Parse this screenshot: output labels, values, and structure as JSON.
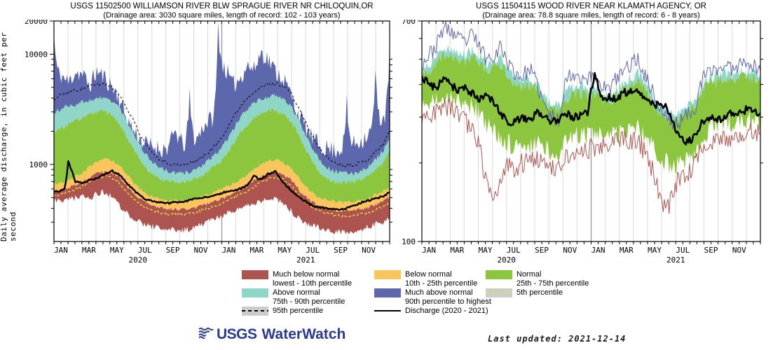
{
  "footer": {
    "logo_usgs": "USGS",
    "logo_waterwatch": "WaterWatch",
    "logo_color": "#2b3990",
    "last_updated": "Last updated: 2021-12-14"
  },
  "colors": {
    "much_below": "#ad5450",
    "below": "#fbc55d",
    "normal": "#8cc63f",
    "above": "#8fd6c8",
    "much_above": "#5d67ab",
    "percentile_gray": "#cccccc",
    "dash_yellow": "#e8e337",
    "grid": "#d9d9d9",
    "year_divider": "#909090"
  },
  "legend": {
    "columns": [
      [
        {
          "swatch": "fill",
          "color": "#ad5450",
          "label": "Much below normal",
          "sublabel": "lowest - 10th percentile"
        },
        {
          "swatch": "fill",
          "color": "#8fd6c8",
          "label": "Above normal",
          "sublabel": "75th - 90th percentile"
        },
        {
          "swatch": "gray-dash-black",
          "color": "#cccccc",
          "label": "95th percentile"
        }
      ],
      [
        {
          "swatch": "fill",
          "color": "#fbc55d",
          "label": "Below normal",
          "sublabel": "10th - 25th percentile"
        },
        {
          "swatch": "fill",
          "color": "#5d67ab",
          "label": "Much above normal",
          "sublabel": "90th percentile to highest"
        },
        {
          "swatch": "line-black",
          "label": "Discharge (2020 - 2021)"
        }
      ],
      [
        {
          "swatch": "fill",
          "color": "#8cc63f",
          "label": "Normal",
          "sublabel": "25th - 75th percentile"
        },
        {
          "swatch": "gray-dash-yellow",
          "color": "#cccccc",
          "label": "5th percentile"
        }
      ]
    ]
  },
  "chart_data": [
    {
      "id": "williamson",
      "type": "area",
      "title": "USGS 11502500 WILLIAMSON RIVER BLW SPRAGUE RIVER NR CHILOQUIN,OR",
      "subtitle": "(Drainage area: 3030 square miles, length of record: 102 - 103 years)",
      "ylabel": "Daily average discharge, in cubic feet per second",
      "yscale": "log",
      "ylim": [
        200,
        20000
      ],
      "yticks_labeled": [
        [
          20000,
          "20000"
        ],
        [
          10000,
          "10000"
        ],
        [
          1000,
          "1000"
        ]
      ],
      "yticks_minor": [
        300,
        400,
        500,
        600,
        700,
        800,
        900,
        2000,
        3000,
        4000,
        5000,
        6000,
        7000,
        8000,
        9000
      ],
      "month_labels": [
        "JAN",
        "MAR",
        "MAY",
        "JUL",
        "SEP",
        "NOV"
      ],
      "years": [
        "2020",
        "2021"
      ],
      "noise_seed": 11,
      "series": {
        "pmax": [
          15000,
          6500,
          5500,
          7000,
          6500,
          5200,
          7000,
          6200,
          5200,
          4200,
          2800,
          2100,
          1700,
          1500,
          1450,
          1380,
          1420,
          2000,
          1500,
          4200,
          1700,
          2300,
          2600,
          19000,
          7500,
          5200,
          6000,
          8000,
          7200,
          10500,
          9000,
          7000,
          6200,
          4600,
          3100,
          2300,
          1800,
          1500,
          1420,
          1350,
          1380,
          3600,
          1550,
          1650,
          1900,
          6500,
          2600,
          13000
        ],
        "p95": [
          3800,
          4300,
          4500,
          4700,
          4900,
          5100,
          5300,
          5400,
          5100,
          4500,
          3400,
          2600,
          1900,
          1500,
          1250,
          1100,
          1020,
          990,
          990,
          1020,
          1080,
          1200,
          1350,
          1600,
          2000,
          2600,
          3300,
          4000,
          4600,
          5000,
          5300,
          5400,
          5200,
          4600,
          3500,
          2600,
          1900,
          1450,
          1200,
          1060,
          1000,
          980,
          1000,
          1040,
          1120,
          1300,
          1500,
          2000
        ],
        "p90": [
          2900,
          3200,
          3400,
          3500,
          3700,
          3800,
          3950,
          4000,
          3800,
          3400,
          2600,
          2000,
          1500,
          1200,
          1020,
          920,
          860,
          830,
          830,
          860,
          910,
          1000,
          1120,
          1300,
          1600,
          2000,
          2600,
          3200,
          3600,
          3900,
          4100,
          4150,
          3950,
          3500,
          2700,
          2000,
          1500,
          1150,
          960,
          880,
          845,
          825,
          835,
          875,
          950,
          1100,
          1300,
          1700
        ],
        "p75": [
          1950,
          2100,
          2300,
          2500,
          2700,
          2850,
          3000,
          3000,
          2800,
          2400,
          1900,
          1400,
          1100,
          900,
          800,
          735,
          705,
          690,
          690,
          710,
          755,
          825,
          905,
          1010,
          1200,
          1500,
          1900,
          2300,
          2700,
          2900,
          3050,
          3100,
          2900,
          2500,
          2000,
          1450,
          1100,
          880,
          765,
          715,
          692,
          682,
          700,
          730,
          800,
          905,
          1010,
          1300
        ],
        "p25": [
          650,
          680,
          720,
          780,
          850,
          950,
          1050,
          1100,
          1100,
          1000,
          850,
          700,
          600,
          540,
          500,
          480,
          470,
          465,
          465,
          472,
          492,
          520,
          550,
          582,
          620,
          660,
          722,
          800,
          900,
          1000,
          1080,
          1100,
          1050,
          950,
          800,
          650,
          560,
          510,
          480,
          465,
          455,
          450,
          460,
          470,
          490,
          530,
          560,
          620
        ],
        "p10": [
          560,
          580,
          610,
          650,
          700,
          760,
          820,
          860,
          850,
          780,
          650,
          560,
          490,
          450,
          420,
          405,
          395,
          390,
          390,
          396,
          410,
          430,
          455,
          476,
          510,
          540,
          590,
          640,
          710,
          780,
          830,
          850,
          820,
          740,
          620,
          520,
          460,
          425,
          400,
          390,
          380,
          378,
          382,
          390,
          408,
          430,
          460,
          510
        ],
        "p5": [
          520,
          540,
          560,
          590,
          640,
          690,
          740,
          780,
          760,
          700,
          580,
          500,
          440,
          405,
          380,
          365,
          355,
          350,
          352,
          358,
          370,
          390,
          410,
          432,
          460,
          490,
          530,
          570,
          630,
          690,
          740,
          760,
          730,
          660,
          550,
          470,
          415,
          385,
          362,
          352,
          345,
          342,
          346,
          355,
          368,
          390,
          415,
          460
        ],
        "pmin": [
          480,
          460,
          490,
          500,
          520,
          480,
          540,
          560,
          520,
          430,
          380,
          330,
          300,
          280,
          270,
          260,
          255,
          250,
          250,
          260,
          270,
          290,
          310,
          330,
          360,
          380,
          400,
          420,
          450,
          470,
          490,
          480,
          450,
          390,
          330,
          300,
          280,
          265,
          255,
          250,
          245,
          245,
          250,
          258,
          268,
          285,
          300,
          330
        ],
        "discharge": [
          560,
          580,
          1080,
          700,
          680,
          720,
          755,
          800,
          880,
          820,
          700,
          600,
          520,
          480,
          460,
          450,
          445,
          452,
          456,
          470,
          490,
          500,
          520,
          540,
          560,
          580,
          600,
          640,
          780,
          730,
          820,
          860,
          700,
          600,
          520,
          470,
          430,
          410,
          400,
          395,
          390,
          400,
          420,
          450,
          470,
          490,
          510,
          560
        ]
      },
      "jitter": {
        "pmax": 0.2,
        "p95": 0.035,
        "p90": 0.05,
        "p75": 0.05,
        "p25": 0.035,
        "p10": 0.035,
        "p5": 0.03,
        "pmin": 0.07,
        "discharge": 0.02
      },
      "bands": [
        {
          "name": "much-above-band",
          "upper": "pmax",
          "lower": "p90",
          "color": "#5d67ab"
        },
        {
          "name": "above-band",
          "upper": "p90",
          "lower": "p75",
          "color": "#8fd6c8"
        },
        {
          "name": "normal-band",
          "upper": "p75",
          "lower": "p25",
          "color": "#8cc63f"
        },
        {
          "name": "below-band",
          "upper": "p25",
          "lower": "p10",
          "color": "#fbc55d"
        },
        {
          "name": "much-below-band",
          "upper": "p10",
          "lower": "pmin",
          "color": "#ad5450"
        }
      ],
      "lines": [
        {
          "name": "p95-line",
          "series": "p95",
          "color": "#000000",
          "width": 1,
          "dash": "3 3"
        },
        {
          "name": "p5-line",
          "series": "p5",
          "color": "#e8e337",
          "width": 1.3,
          "dash": "4 3"
        },
        {
          "name": "discharge-line",
          "series": "discharge",
          "color": "#000000",
          "width": 2.4
        }
      ]
    },
    {
      "id": "wood",
      "type": "area",
      "title": "USGS 11504115 WOOD RIVER NEAR KLAMATH AGENCY, OR",
      "subtitle": "(Drainage area: 78.8 square miles, length of record: 6 - 8 years)",
      "yscale": "log",
      "ylim": [
        100,
        700
      ],
      "yticks_labeled": [
        [
          700,
          "700"
        ],
        [
          100,
          "100"
        ]
      ],
      "yticks_minor": [
        200,
        300,
        400,
        500,
        600
      ],
      "month_labels": [
        "JAN",
        "MAR",
        "MAY",
        "JUL",
        "SEP",
        "NOV"
      ],
      "years": [
        "2020",
        "2021"
      ],
      "noise_seed": 23,
      "series": {
        "max": [
          480,
          520,
          560,
          660,
          640,
          600,
          580,
          620,
          560,
          500,
          520,
          560,
          480,
          440,
          430,
          460,
          400,
          330,
          300,
          290,
          420,
          440,
          430,
          420,
          430,
          400,
          380,
          420,
          450,
          480,
          500,
          430,
          380,
          320,
          300,
          280,
          290,
          310,
          330,
          420,
          450,
          460,
          470,
          460,
          480,
          500,
          470,
          450
        ],
        "p90": [
          456,
          477,
          509,
          551,
          551,
          530,
          519,
          541,
          509,
          477,
          488,
          509,
          456,
          424,
          413,
          424,
          403,
          360,
          339,
          329,
          371,
          392,
          392,
          382,
          382,
          371,
          360,
          382,
          403,
          424,
          445,
          403,
          360,
          329,
          318,
          307,
          318,
          339,
          350,
          403,
          424,
          435,
          445,
          435,
          445,
          456,
          445,
          435
        ],
        "p75": [
          430,
          450,
          480,
          520,
          520,
          500,
          490,
          510,
          480,
          450,
          460,
          480,
          430,
          400,
          390,
          400,
          380,
          340,
          320,
          310,
          350,
          370,
          370,
          360,
          360,
          350,
          340,
          360,
          380,
          400,
          420,
          380,
          340,
          310,
          300,
          290,
          300,
          320,
          330,
          380,
          400,
          410,
          420,
          410,
          420,
          430,
          420,
          410
        ],
        "p25": [
          330,
          340,
          350,
          360,
          360,
          350,
          340,
          330,
          310,
          280,
          260,
          250,
          240,
          230,
          230,
          235,
          240,
          230,
          220,
          215,
          240,
          250,
          260,
          255,
          260,
          255,
          250,
          255,
          260,
          270,
          270,
          250,
          230,
          210,
          200,
          195,
          200,
          210,
          220,
          250,
          270,
          280,
          290,
          285,
          290,
          295,
          290,
          285
        ],
        "min": [
          290,
          300,
          310,
          330,
          330,
          310,
          290,
          270,
          230,
          160,
          140,
          180,
          200,
          190,
          200,
          210,
          210,
          200,
          195,
          190,
          210,
          220,
          230,
          225,
          230,
          235,
          230,
          240,
          250,
          245,
          240,
          220,
          190,
          150,
          130,
          160,
          180,
          185,
          200,
          230,
          240,
          250,
          255,
          250,
          260,
          265,
          270,
          260
        ],
        "discharge": [
          430,
          400,
          390,
          420,
          400,
          380,
          390,
          370,
          350,
          360,
          340,
          310,
          285,
          290,
          300,
          290,
          310,
          300,
          290,
          295,
          310,
          300,
          305,
          310,
          450,
          350,
          360,
          350,
          370,
          380,
          380,
          360,
          340,
          330,
          330,
          280,
          250,
          240,
          260,
          290,
          300,
          290,
          300,
          310,
          310,
          320,
          320,
          310
        ]
      },
      "jitter": {
        "max": 0.07,
        "p90": 0.05,
        "p75": 0.05,
        "p25": 0.09,
        "min": 0.09,
        "discharge": 0.035
      },
      "bands": [
        {
          "name": "above-band",
          "upper": "p90",
          "lower": "p75",
          "color": "#8fd6c8"
        },
        {
          "name": "normal-band",
          "upper": "p75",
          "lower": "p25",
          "color": "#8cc63f"
        }
      ],
      "lines": [
        {
          "name": "max-line",
          "series": "max",
          "color": "#5d67ab",
          "width": 1
        },
        {
          "name": "min-line",
          "series": "min",
          "color": "#b0544e",
          "width": 1
        },
        {
          "name": "discharge-line",
          "series": "discharge",
          "color": "#000000",
          "width": 2.6
        }
      ]
    }
  ]
}
